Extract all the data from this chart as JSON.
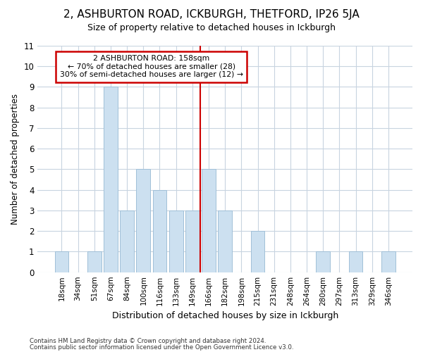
{
  "title1": "2, ASHBURTON ROAD, ICKBURGH, THETFORD, IP26 5JA",
  "title2": "Size of property relative to detached houses in Ickburgh",
  "xlabel": "Distribution of detached houses by size in Ickburgh",
  "ylabel": "Number of detached properties",
  "bar_labels": [
    "18sqm",
    "34sqm",
    "51sqm",
    "67sqm",
    "84sqm",
    "100sqm",
    "116sqm",
    "133sqm",
    "149sqm",
    "166sqm",
    "182sqm",
    "198sqm",
    "215sqm",
    "231sqm",
    "248sqm",
    "264sqm",
    "280sqm",
    "297sqm",
    "313sqm",
    "329sqm",
    "346sqm"
  ],
  "bar_heights": [
    1,
    0,
    1,
    9,
    3,
    5,
    4,
    3,
    3,
    5,
    3,
    0,
    2,
    0,
    0,
    0,
    1,
    0,
    1,
    0,
    1
  ],
  "bar_color": "#cce0f0",
  "bar_edgecolor": "#a0c0d8",
  "vline_x_index": 8.5,
  "vline_color": "#cc0000",
  "annotation_line1": "2 ASHBURTON ROAD: 158sqm",
  "annotation_line2": "← 70% of detached houses are smaller (28)",
  "annotation_line3": "30% of semi-detached houses are larger (12) →",
  "annotation_box_color": "#cc0000",
  "ylim": [
    0,
    11
  ],
  "yticks": [
    0,
    1,
    2,
    3,
    4,
    5,
    6,
    7,
    8,
    9,
    10,
    11
  ],
  "footer1": "Contains HM Land Registry data © Crown copyright and database right 2024.",
  "footer2": "Contains public sector information licensed under the Open Government Licence v3.0.",
  "bg_color": "#ffffff",
  "plot_bg_color": "#ffffff"
}
